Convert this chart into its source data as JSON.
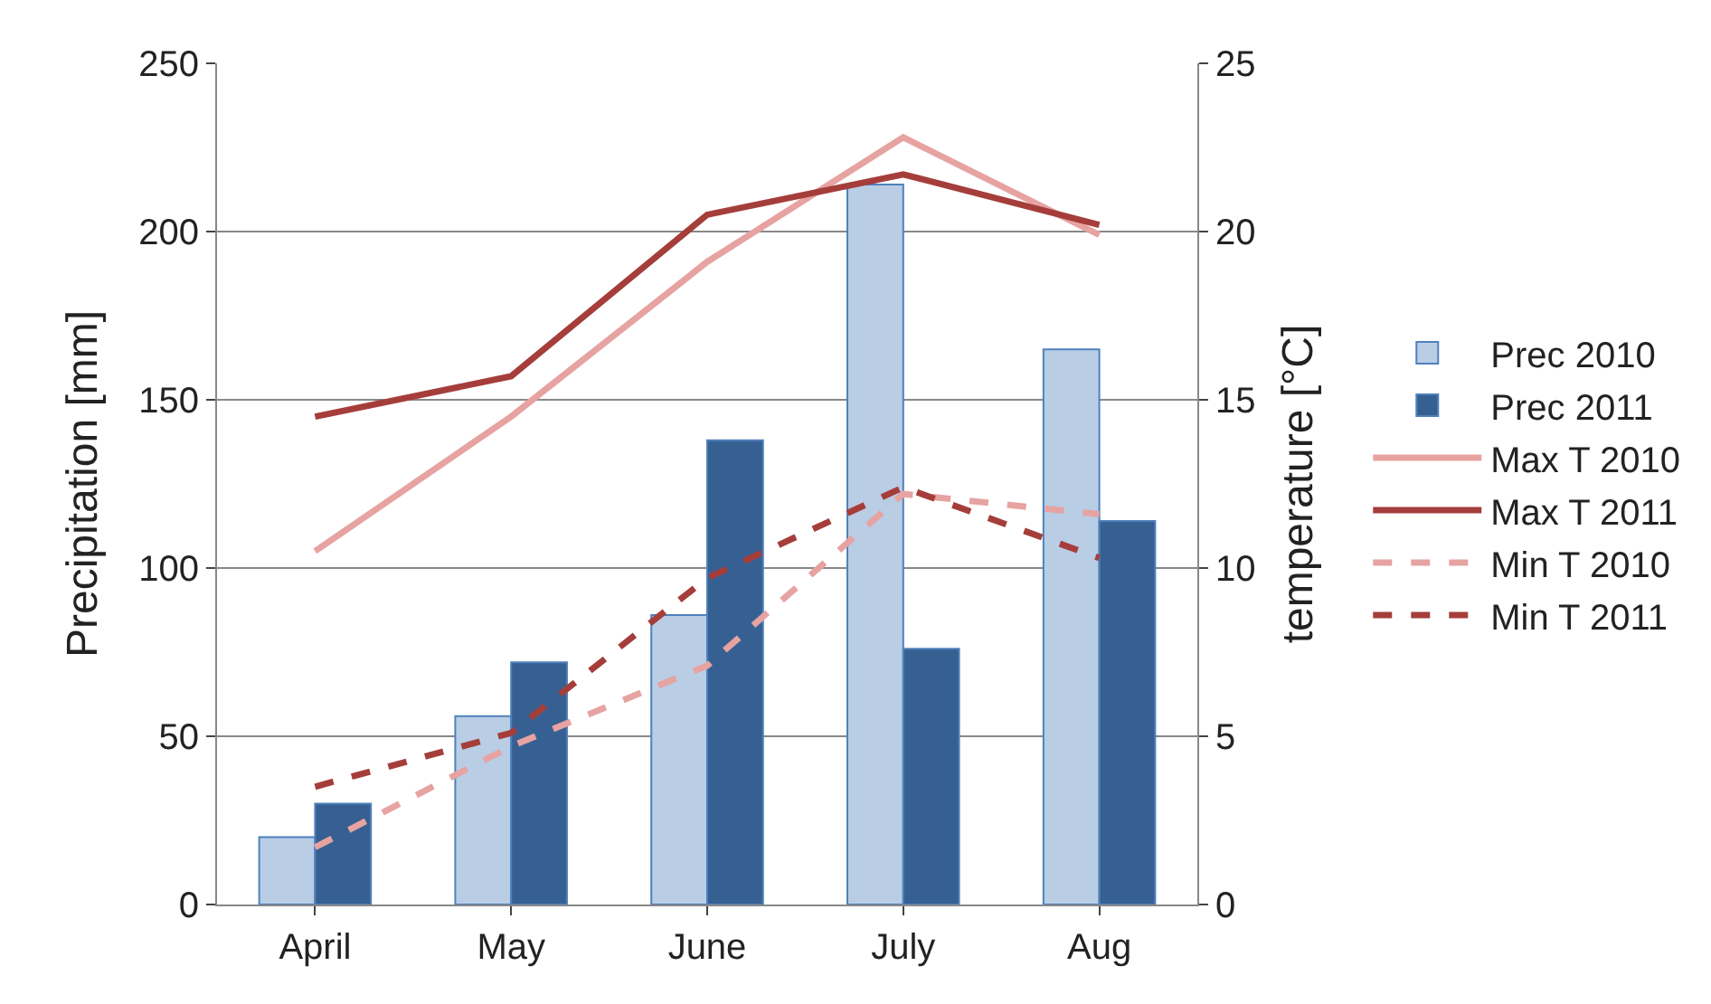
{
  "chart_data": {
    "type": "bar",
    "ylabel": "Precipitation [mm]",
    "y2label": "temperature [°C]",
    "categories": [
      "April",
      "May",
      "June",
      "July",
      "Aug"
    ],
    "series": [
      {
        "name": "Prec 2010",
        "color": "#b9cde5",
        "values": [
          20,
          56,
          86,
          214,
          165
        ]
      },
      {
        "name": "Prec 2011",
        "color": "#376092",
        "values": [
          30,
          72,
          138,
          76,
          114
        ]
      },
      {
        "name": "Max T 2010",
        "type": "line",
        "axis": "y2",
        "color": "#e6a3a1",
        "line_style": "solid",
        "values": [
          10.5,
          14.5,
          19.1,
          22.8,
          19.9
        ]
      },
      {
        "name": "Max T 2011",
        "type": "line",
        "axis": "y2",
        "color": "#a53e3b",
        "line_style": "solid",
        "values": [
          14.5,
          15.7,
          20.5,
          21.7,
          20.2
        ]
      },
      {
        "name": "Min T 2010",
        "type": "line",
        "axis": "y2",
        "color": "#e6a3a1",
        "line_style": "dashed",
        "values": [
          1.7,
          4.7,
          7.1,
          12.2,
          11.6
        ]
      },
      {
        "name": "Min T 2011",
        "type": "line",
        "axis": "y2",
        "color": "#a53e3b",
        "line_style": "dashed",
        "values": [
          3.5,
          5.1,
          9.7,
          12.4,
          10.3
        ]
      }
    ],
    "ylim": [
      0,
      250
    ],
    "yticks": [
      0,
      50,
      100,
      150,
      200,
      250
    ],
    "y2lim": [
      0,
      25
    ],
    "y2ticks": [
      0,
      5,
      10,
      15,
      20,
      25
    ],
    "grid": "y",
    "legend": "right",
    "marker": "none"
  }
}
